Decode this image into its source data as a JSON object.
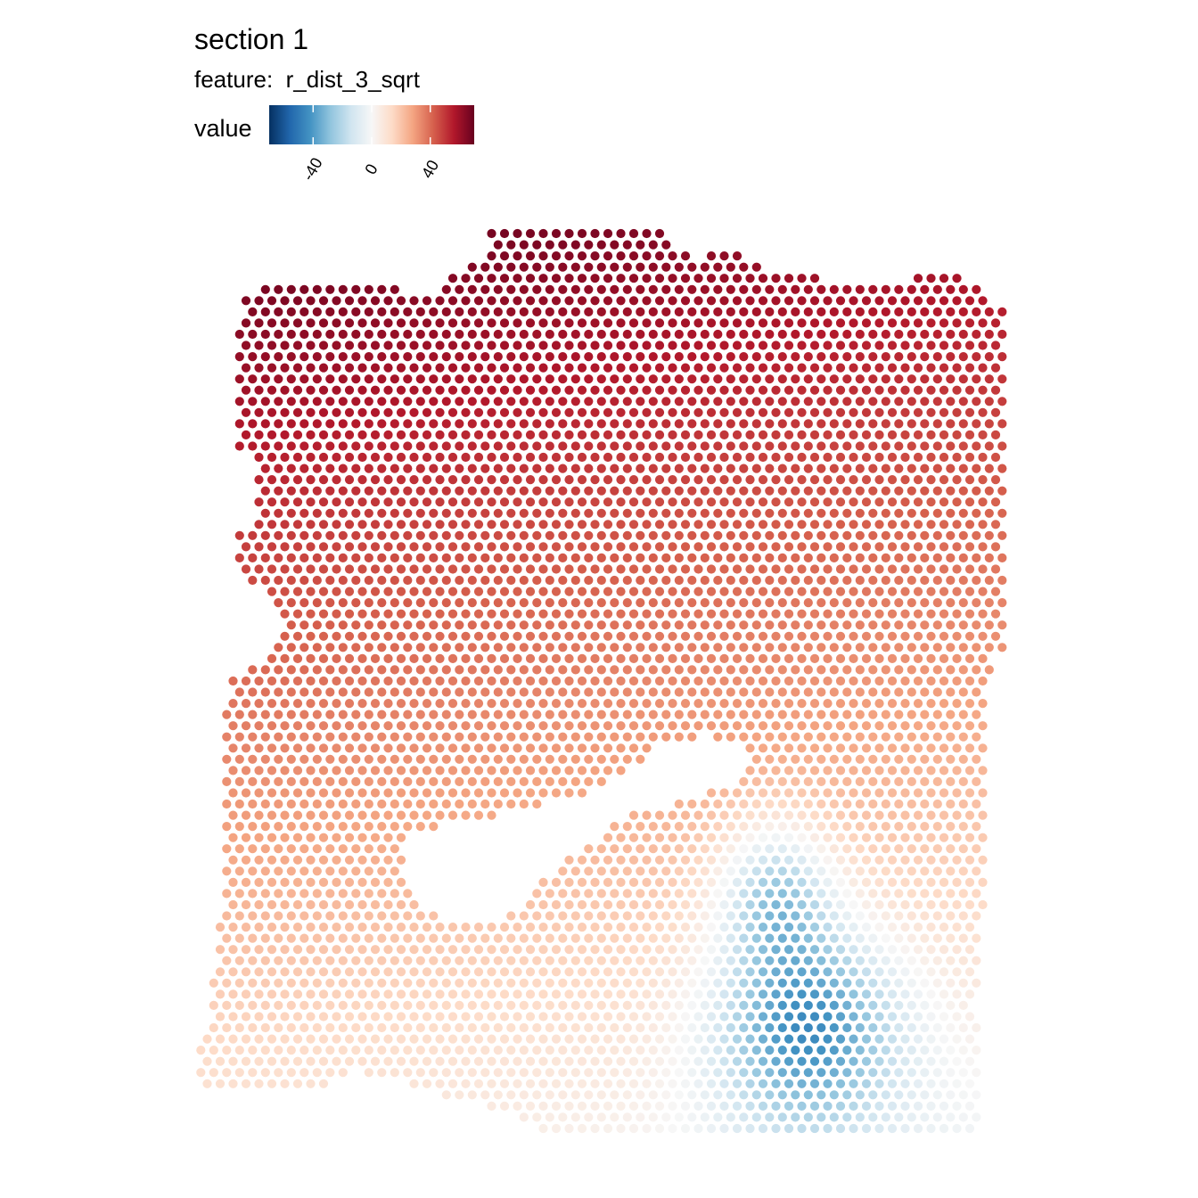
{
  "chart_data": {
    "type": "scatter",
    "title": "section 1",
    "subtitle": "feature:  r_dist_3_sqrt",
    "legend": {
      "title": "value",
      "placement": "top-left",
      "ticks": [
        -40,
        0,
        40
      ],
      "tick_labels": [
        "-40",
        "0",
        "40"
      ],
      "range": [
        -70,
        70
      ],
      "palette": [
        "#053061",
        "#2166ac",
        "#4393c3",
        "#92c5de",
        "#d1e5f0",
        "#f7f7f7",
        "#fddbc7",
        "#f4a582",
        "#d6604d",
        "#b2182b",
        "#67001f"
      ]
    },
    "grid": false,
    "value_field_description": "hexagonal spot grid; value decreases from ~65 at top-left to ~-15 near the lower-right cluster",
    "extremes": {
      "max_region": "top-left",
      "min_region": "lower-right"
    }
  }
}
